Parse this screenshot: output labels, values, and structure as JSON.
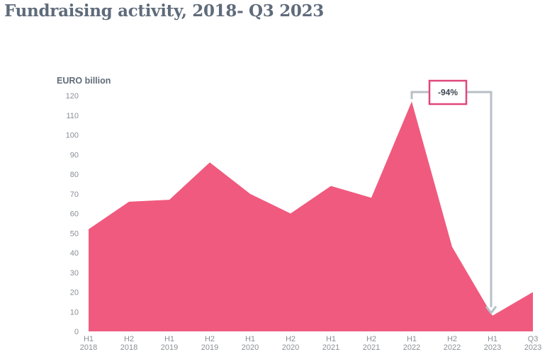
{
  "title": "Fundraising activity, 2018- Q3 2023",
  "colors": {
    "area": "#f05a7e",
    "callout_border": "#e0467a",
    "arrow": "#b7c0c6",
    "title": "#5f6b7a"
  },
  "chart_data": {
    "type": "area",
    "title": "Fundraising activity, 2018- Q3 2023",
    "ylabel": "EURO billion",
    "xlabel": "",
    "ylim": [
      0,
      120
    ],
    "yticks": [
      0,
      10,
      20,
      30,
      40,
      50,
      60,
      70,
      80,
      90,
      100,
      110,
      120
    ],
    "grid": false,
    "categories": [
      [
        "H1",
        "2018"
      ],
      [
        "H2",
        "2018"
      ],
      [
        "H1",
        "2019"
      ],
      [
        "H2",
        "2019"
      ],
      [
        "H1",
        "2020"
      ],
      [
        "H2",
        "2020"
      ],
      [
        "H1",
        "2021"
      ],
      [
        "H2",
        "2021"
      ],
      [
        "H1",
        "2022"
      ],
      [
        "H2",
        "2022"
      ],
      [
        "H1",
        "2023"
      ],
      [
        "Q3",
        "2023"
      ]
    ],
    "series": [
      {
        "values": [
          52,
          66,
          67,
          86,
          70,
          60,
          74,
          68,
          117,
          43,
          8,
          20
        ]
      }
    ],
    "annotation": {
      "text": "-94%",
      "from_index": 8,
      "to_index": 10
    }
  }
}
